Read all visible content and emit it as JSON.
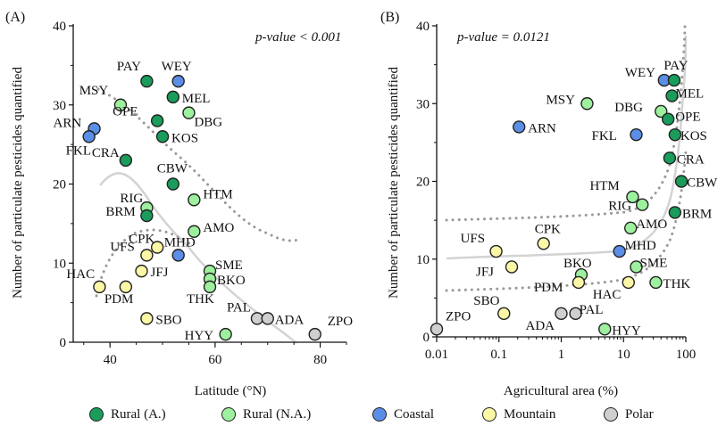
{
  "colors": {
    "Rural (A.)": "#1a9c5a",
    "Rural (N.A.)": "#9df09d",
    "Coastal": "#5b8ee6",
    "Mountain": "#fbf7a6",
    "Polar": "#cfcfcf"
  },
  "legend": {
    "items": [
      {
        "label": "Rural (A.)",
        "icon": "dark-green-circle"
      },
      {
        "label": "Rural (N.A.)",
        "icon": "light-green-circle"
      },
      {
        "label": "Coastal",
        "icon": "blue-circle"
      },
      {
        "label": "Mountain",
        "icon": "yellow-circle"
      },
      {
        "label": "Polar",
        "icon": "grey-circle"
      }
    ]
  },
  "chart_data": [
    {
      "type": "scatter",
      "panel": "(A)",
      "annotation": "p-value < 0.001",
      "xlabel": "Latitude (°N)",
      "ylabel": "Number of particulate pesticides quantified",
      "xlim": [
        33,
        85
      ],
      "ylim": [
        0,
        40
      ],
      "xticks": [
        "40",
        "60",
        "80"
      ],
      "yticks": [
        "0",
        "10",
        "20",
        "30",
        "40"
      ],
      "x_scale": "linear",
      "grid": false,
      "points": [
        {
          "name": "PAY",
          "x": 47,
          "y": 33,
          "group": "Rural (A.)"
        },
        {
          "name": "WEY",
          "x": 53,
          "y": 33,
          "group": "Coastal"
        },
        {
          "name": "MSY",
          "x": 42,
          "y": 30,
          "group": "Rural (N.A.)"
        },
        {
          "name": "MEL",
          "x": 52,
          "y": 31,
          "group": "Rural (A.)"
        },
        {
          "name": "DBG",
          "x": 55,
          "y": 29,
          "group": "Rural (N.A.)"
        },
        {
          "name": "ARN",
          "x": 37,
          "y": 27,
          "group": "Coastal"
        },
        {
          "name": "OPE",
          "x": 49,
          "y": 28,
          "group": "Rural (A.)"
        },
        {
          "name": "FKL",
          "x": 36,
          "y": 26,
          "group": "Coastal"
        },
        {
          "name": "KOS",
          "x": 50,
          "y": 26,
          "group": "Rural (A.)"
        },
        {
          "name": "CRA",
          "x": 43,
          "y": 23,
          "group": "Rural (A.)"
        },
        {
          "name": "CBW",
          "x": 52,
          "y": 20,
          "group": "Rural (A.)"
        },
        {
          "name": "HTM",
          "x": 56,
          "y": 18,
          "group": "Rural (N.A.)"
        },
        {
          "name": "RIG",
          "x": 47,
          "y": 17,
          "group": "Rural (N.A.)"
        },
        {
          "name": "BRM",
          "x": 47,
          "y": 16,
          "group": "Rural (A.)"
        },
        {
          "name": "AMO",
          "x": 56,
          "y": 14,
          "group": "Rural (N.A.)"
        },
        {
          "name": "CPK",
          "x": 49,
          "y": 12,
          "group": "Mountain"
        },
        {
          "name": "MHD",
          "x": 53,
          "y": 11,
          "group": "Coastal"
        },
        {
          "name": "UFS",
          "x": 47,
          "y": 11,
          "group": "Mountain"
        },
        {
          "name": "SME",
          "x": 59,
          "y": 9,
          "group": "Rural (N.A.)"
        },
        {
          "name": "JFJ",
          "x": 46,
          "y": 9,
          "group": "Mountain"
        },
        {
          "name": "BKO",
          "x": 59,
          "y": 8,
          "group": "Rural (N.A.)"
        },
        {
          "name": "HAC",
          "x": 38,
          "y": 7,
          "group": "Mountain"
        },
        {
          "name": "PDM",
          "x": 43,
          "y": 7,
          "group": "Mountain"
        },
        {
          "name": "THK",
          "x": 59,
          "y": 7,
          "group": "Rural (N.A.)"
        },
        {
          "name": "SBO",
          "x": 47,
          "y": 3,
          "group": "Mountain"
        },
        {
          "name": "PAL",
          "x": 68,
          "y": 3,
          "group": "Polar"
        },
        {
          "name": "ADA",
          "x": 70,
          "y": 3,
          "group": "Polar"
        },
        {
          "name": "HYY",
          "x": 62,
          "y": 1,
          "group": "Rural (N.A.)"
        },
        {
          "name": "ZPO",
          "x": 79,
          "y": 1,
          "group": "Polar"
        }
      ]
    },
    {
      "type": "scatter",
      "panel": "(B)",
      "annotation": "p-value = 0.0121",
      "xlabel": "Agricultural area (%)",
      "ylabel": "Number of particulate pesticides quantified",
      "xlim": [
        0.01,
        100
      ],
      "ylim": [
        0,
        40
      ],
      "xticks": [
        "0.01",
        "0.1",
        "1",
        "10",
        "100"
      ],
      "yticks": [
        "0",
        "10",
        "20",
        "30",
        "40"
      ],
      "x_scale": "log",
      "grid": false,
      "points": [
        {
          "name": "WEY",
          "x": 45,
          "y": 33,
          "group": "Coastal"
        },
        {
          "name": "PAY",
          "x": 65,
          "y": 33,
          "group": "Rural (A.)"
        },
        {
          "name": "MSY",
          "x": 2.6,
          "y": 30,
          "group": "Rural (N.A.)"
        },
        {
          "name": "MEL",
          "x": 60,
          "y": 31,
          "group": "Rural (A.)"
        },
        {
          "name": "DBG",
          "x": 40,
          "y": 29,
          "group": "Rural (N.A.)"
        },
        {
          "name": "OPE",
          "x": 52,
          "y": 28,
          "group": "Rural (A.)"
        },
        {
          "name": "ARN",
          "x": 0.21,
          "y": 27,
          "group": "Coastal"
        },
        {
          "name": "FKL",
          "x": 16,
          "y": 26,
          "group": "Coastal"
        },
        {
          "name": "KOS",
          "x": 67,
          "y": 26,
          "group": "Rural (A.)"
        },
        {
          "name": "CRA",
          "x": 55,
          "y": 23,
          "group": "Rural (A.)"
        },
        {
          "name": "CBW",
          "x": 85,
          "y": 20,
          "group": "Rural (A.)"
        },
        {
          "name": "HTM",
          "x": 14,
          "y": 18,
          "group": "Rural (N.A.)"
        },
        {
          "name": "RIG",
          "x": 20,
          "y": 17,
          "group": "Rural (N.A.)"
        },
        {
          "name": "BRM",
          "x": 67,
          "y": 16,
          "group": "Rural (A.)"
        },
        {
          "name": "AMO",
          "x": 13,
          "y": 14,
          "group": "Rural (N.A.)"
        },
        {
          "name": "CPK",
          "x": 0.52,
          "y": 12,
          "group": "Mountain"
        },
        {
          "name": "UFS",
          "x": 0.09,
          "y": 11,
          "group": "Mountain"
        },
        {
          "name": "MHD",
          "x": 8.6,
          "y": 11,
          "group": "Coastal"
        },
        {
          "name": "JFJ",
          "x": 0.16,
          "y": 9,
          "group": "Mountain"
        },
        {
          "name": "SME",
          "x": 16,
          "y": 9,
          "group": "Rural (N.A.)"
        },
        {
          "name": "BKO",
          "x": 2.1,
          "y": 8,
          "group": "Rural (N.A.)"
        },
        {
          "name": "PDM",
          "x": 1.9,
          "y": 7,
          "group": "Mountain"
        },
        {
          "name": "HAC",
          "x": 12,
          "y": 7,
          "group": "Mountain"
        },
        {
          "name": "THK",
          "x": 33,
          "y": 7,
          "group": "Rural (N.A.)"
        },
        {
          "name": "SBO",
          "x": 0.12,
          "y": 3,
          "group": "Mountain"
        },
        {
          "name": "ADA",
          "x": 1.0,
          "y": 3,
          "group": "Polar"
        },
        {
          "name": "PAL",
          "x": 1.7,
          "y": 3,
          "group": "Polar"
        },
        {
          "name": "HYY",
          "x": 5.0,
          "y": 1,
          "group": "Rural (N.A.)"
        },
        {
          "name": "ZPO",
          "x": 0.01,
          "y": 1,
          "group": "Polar"
        }
      ]
    }
  ]
}
